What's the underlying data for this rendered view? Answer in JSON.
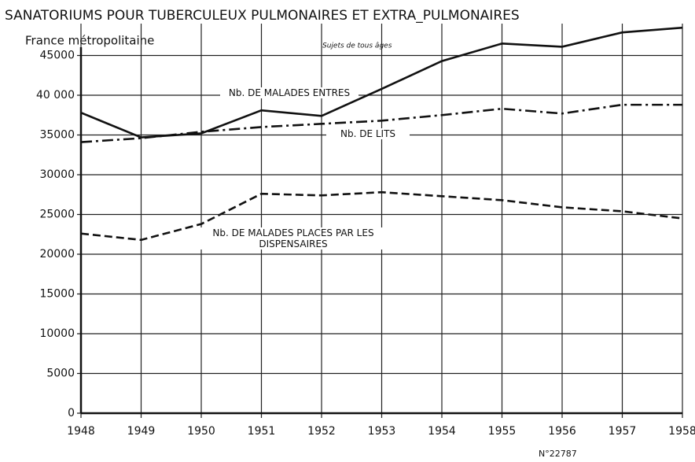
{
  "chart_data": {
    "type": "line",
    "title": "SANATORIUMS POUR TUBERCULEUX PULMONAIRES ET EXTRA_PULMONAIRES",
    "subtitle": "France métropolitaine",
    "note": "Sujets de tous âges",
    "footnote": "N°22787",
    "x": [
      1948,
      1949,
      1950,
      1951,
      1952,
      1953,
      1954,
      1955,
      1956,
      1957,
      1958
    ],
    "xlim": [
      1948,
      1958
    ],
    "xticks": [
      1948,
      1949,
      1950,
      1951,
      1952,
      1953,
      1954,
      1955,
      1956,
      1957,
      1958
    ],
    "ylim": [
      0,
      50000
    ],
    "yticks": [
      0,
      5000,
      10000,
      15000,
      20000,
      25000,
      30000,
      35000,
      {
        "value": 40000,
        "label": "40 000"
      },
      45000
    ],
    "grid": true,
    "series": [
      {
        "name": "Nb. DE MALADES ENTRES",
        "color": "#111111",
        "linestyle": "solid",
        "values": [
          37800,
          34700,
          35200,
          38100,
          37400,
          40800,
          44300,
          46500,
          46100,
          47900,
          48500
        ]
      },
      {
        "name": "Nb. DE LITS",
        "color": "#111111",
        "linestyle": "dashdot",
        "values": [
          34100,
          34600,
          35400,
          36000,
          36400,
          36800,
          37500,
          38300,
          37700,
          38800,
          38800
        ]
      },
      {
        "name": "Nb. DE MALADES PLACES PAR LES DISPENSAIRES",
        "color": "#111111",
        "linestyle": "dashed",
        "values": [
          22600,
          21800,
          23800,
          27600,
          27400,
          27800,
          27300,
          26800,
          25900,
          25400,
          24500
        ]
      }
    ]
  }
}
